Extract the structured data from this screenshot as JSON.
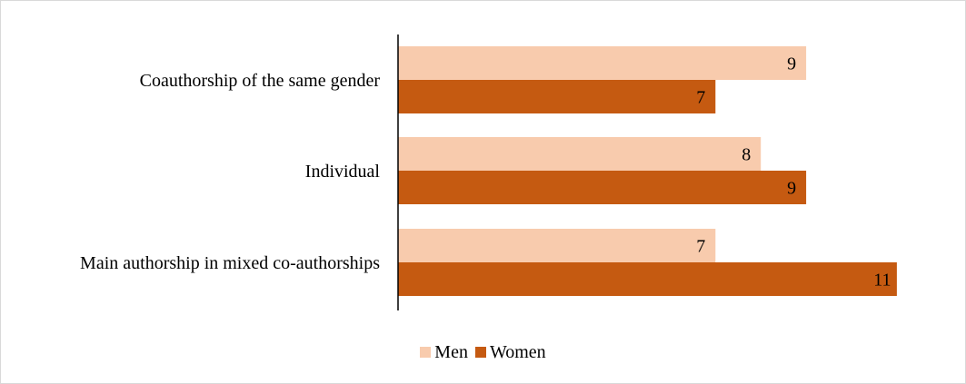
{
  "chart_data": {
    "type": "bar",
    "orientation": "horizontal",
    "categories": [
      "Coauthorship of the same gender",
      "Individual",
      "Main authorship in mixed co-authorships"
    ],
    "series": [
      {
        "name": "Men",
        "values": [
          9,
          8,
          7
        ],
        "color": "#F8CBAD"
      },
      {
        "name": "Women",
        "values": [
          7,
          9,
          11
        ],
        "color": "#C55A11"
      }
    ],
    "xlim": [
      0,
      11
    ],
    "grid": false,
    "legend_position": "bottom",
    "data_labels": true
  }
}
